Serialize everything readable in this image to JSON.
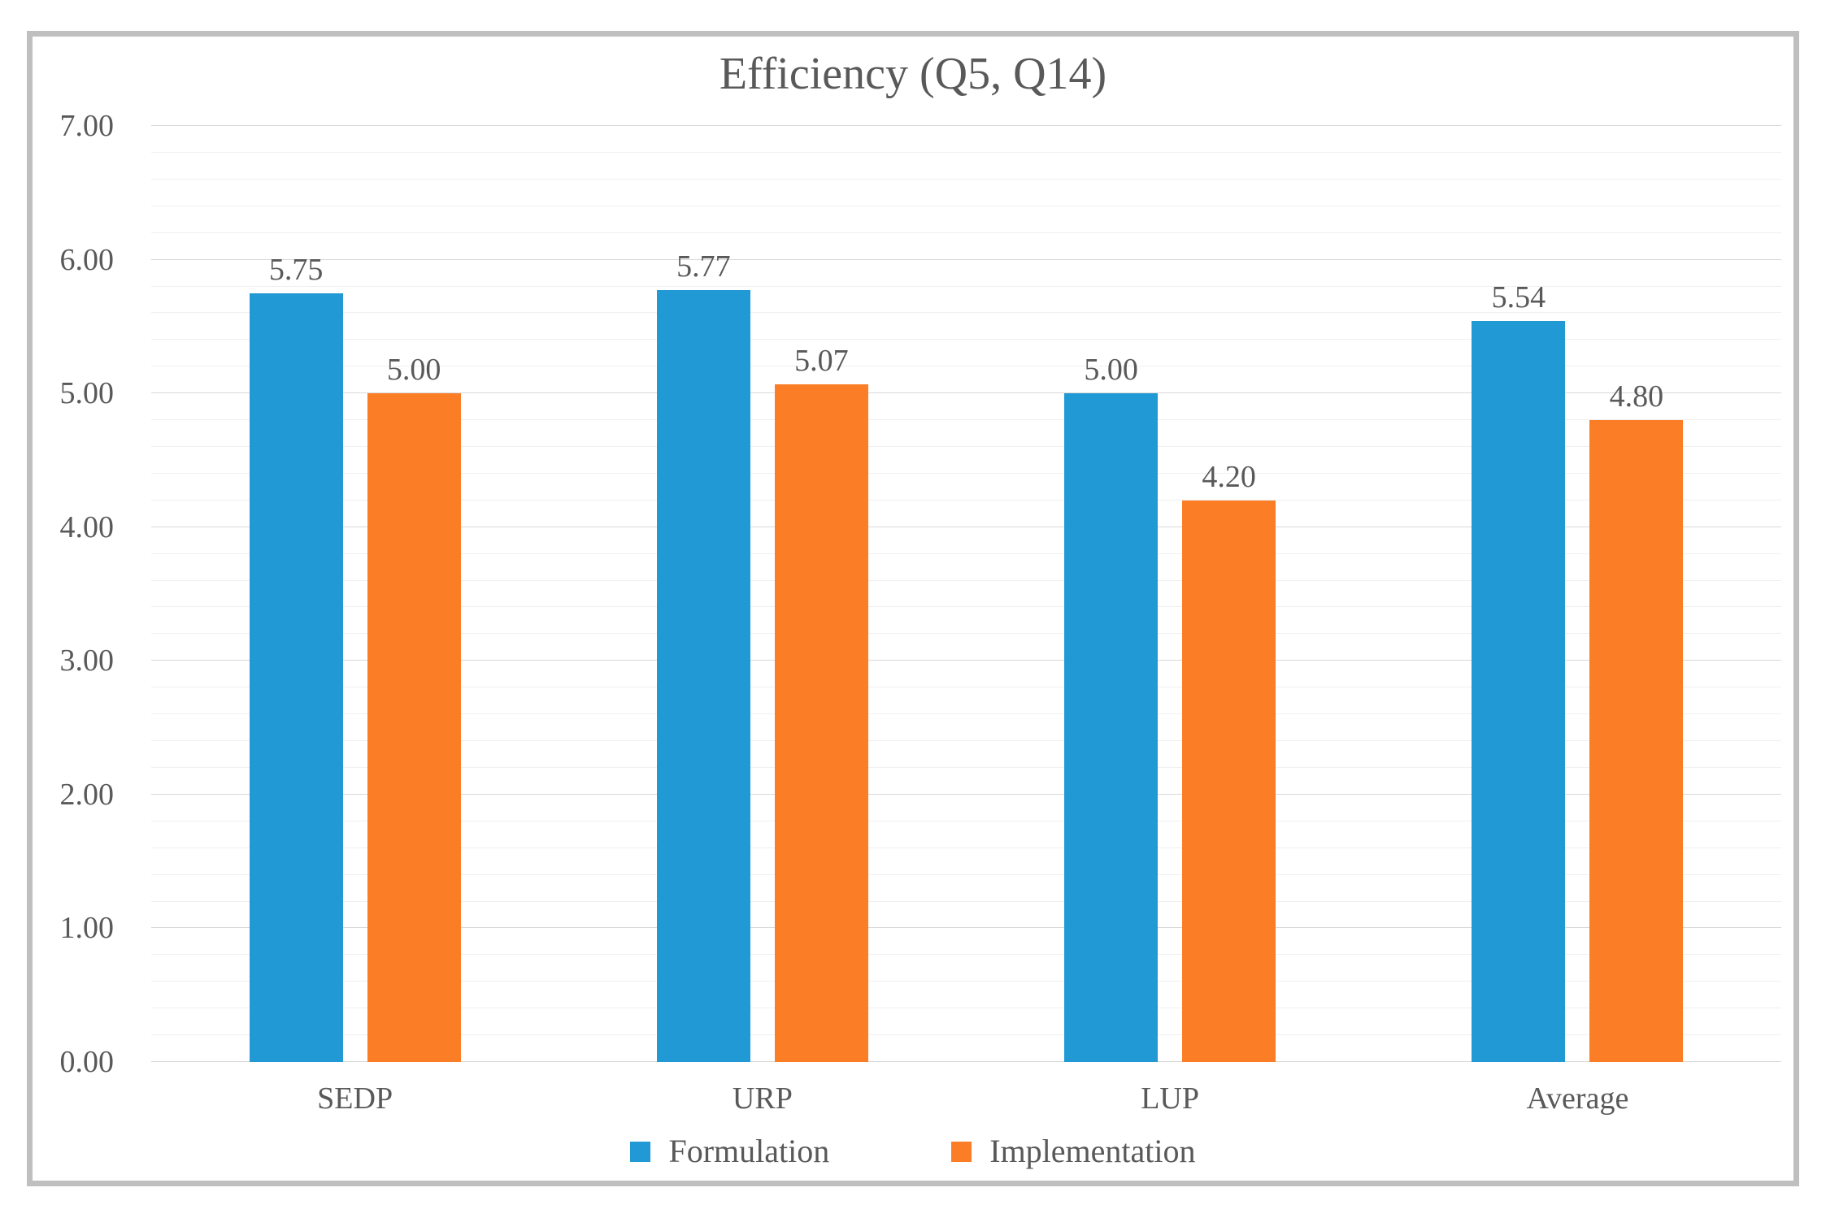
{
  "frame": {
    "border_color": "#BFBFBF"
  },
  "chart_data": {
    "type": "bar",
    "title": "Efficiency (Q5, Q14)",
    "categories": [
      "SEDP",
      "URP",
      "LUP",
      "Average"
    ],
    "series": [
      {
        "name": "Formulation",
        "color": "#2099D5",
        "values": [
          5.75,
          5.77,
          5.0,
          5.54
        ],
        "labels": [
          "5.75",
          "5.77",
          "5.00",
          "5.54"
        ]
      },
      {
        "name": "Implementation",
        "color": "#FB7D25",
        "values": [
          5.0,
          5.07,
          4.2,
          4.8
        ],
        "labels": [
          "5.00",
          "5.07",
          "4.20",
          "4.80"
        ]
      }
    ],
    "ylim": [
      0,
      7
    ],
    "y_major_step": 1,
    "y_minor_step": 0.2,
    "y_ticks": [
      "0.00",
      "1.00",
      "2.00",
      "3.00",
      "4.00",
      "5.00",
      "6.00",
      "7.00"
    ],
    "grid": "horizontal",
    "legend_position": "bottom",
    "grid_major_color": "#D9D9D9",
    "grid_minor_color": "#F0F0F0",
    "text_color": "#595959"
  }
}
